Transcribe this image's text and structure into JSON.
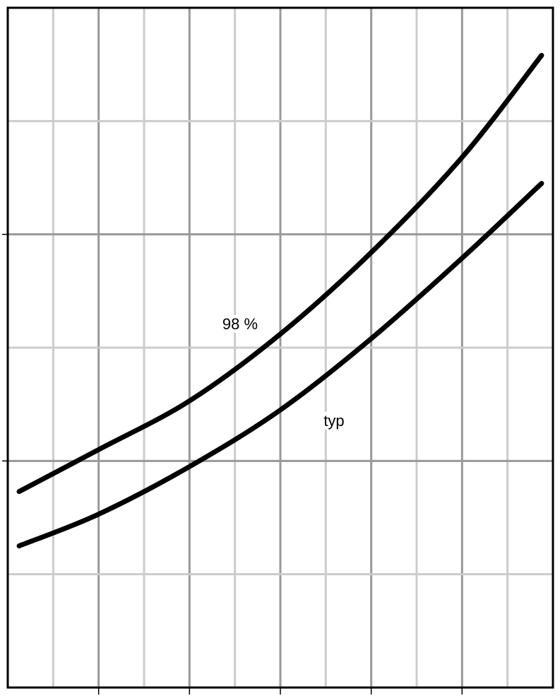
{
  "chart_data": {
    "type": "line",
    "annotations": [
      "98 %",
      "typ"
    ],
    "series": [
      {
        "name": null,
        "color": "#000000",
        "x": [
          0.25,
          2,
          4,
          6,
          8,
          10,
          11.75
        ],
        "values": [
          1.73,
          2.1,
          2.53,
          3.12,
          3.84,
          4.68,
          5.58
        ]
      },
      {
        "name": null,
        "color": "#000000",
        "x": [
          0.25,
          2,
          4,
          6,
          8,
          10,
          11.75
        ],
        "values": [
          1.25,
          1.53,
          1.95,
          2.45,
          3.08,
          3.79,
          4.45
        ]
      }
    ],
    "xlim": [
      0,
      12
    ],
    "ylim": [
      0,
      6
    ],
    "xticks": [
      0,
      1,
      2,
      3,
      4,
      5,
      6,
      7,
      8,
      9,
      10,
      11,
      12
    ],
    "yticks": [
      0,
      1,
      2,
      3,
      4,
      5,
      6
    ],
    "major_xticks": [
      2,
      4,
      6,
      8,
      10
    ],
    "major_yticks": [
      2,
      4
    ],
    "grid": true
  }
}
